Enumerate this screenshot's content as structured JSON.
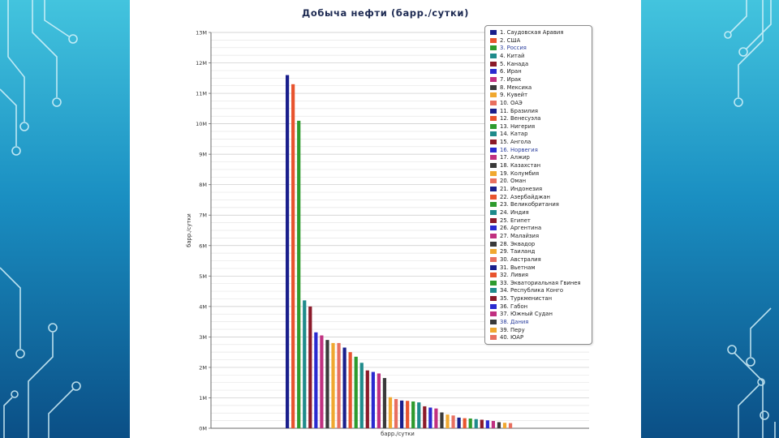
{
  "colors": [
    "#1a1f8c",
    "#e8542e",
    "#2e9b2e",
    "#1f8b8b",
    "#8b1a2a",
    "#2a2ad0",
    "#c03080",
    "#3a3a3a",
    "#f0a830",
    "#e87060"
  ],
  "highlight_color": "#2b3f9e",
  "chart_data": {
    "type": "bar",
    "title": "Добыча нефти (барр./сутки)",
    "xlabel": "барр./сутки",
    "ylabel": "барр./сутки",
    "ylim": [
      0,
      13000000
    ],
    "y_ticks": [
      {
        "value": 0,
        "label": "0M"
      },
      {
        "value": 1000000,
        "label": "1M"
      },
      {
        "value": 2000000,
        "label": "2M"
      },
      {
        "value": 3000000,
        "label": "3M"
      },
      {
        "value": 4000000,
        "label": "4M"
      },
      {
        "value": 5000000,
        "label": "5M"
      },
      {
        "value": 6000000,
        "label": "6M"
      },
      {
        "value": 7000000,
        "label": "7M"
      },
      {
        "value": 8000000,
        "label": "8M"
      },
      {
        "value": 9000000,
        "label": "9M"
      },
      {
        "value": 10000000,
        "label": "10M"
      },
      {
        "value": 11000000,
        "label": "11M"
      },
      {
        "value": 12000000,
        "label": "12M"
      },
      {
        "value": 13000000,
        "label": "13M"
      }
    ],
    "grid": true,
    "legend_position": "top-right",
    "categories": [
      "1. Саудовская Аравия",
      "2. США",
      "3. Россия",
      "4. Китай",
      "5. Канада",
      "6. Иран",
      "7. Ирак",
      "8. Мексика",
      "9. Кувейт",
      "10. ОАЭ",
      "11. Бразилия",
      "12. Венесуэла",
      "13. Нигерия",
      "14. Катар",
      "15. Ангола",
      "16. Норвегия",
      "17. Алжир",
      "18. Казахстан",
      "19. Колумбия",
      "20. Оман",
      "21. Индонезия",
      "22. Азербайджан",
      "23. Великобритания",
      "24. Индия",
      "25. Египет",
      "26. Аргентина",
      "27. Малайзия",
      "28. Эквадор",
      "29. Таиланд",
      "30. Австралия",
      "31. Вьетнам",
      "32. Ливия",
      "33. Экваториальная Гвинея",
      "34. Республика Конго",
      "35. Туркменистан",
      "36. Габон",
      "37. Южный Судан",
      "38. Дания",
      "39. Перу",
      "40. ЮАР"
    ],
    "values": [
      11600000,
      11300000,
      10100000,
      4200000,
      4000000,
      3150000,
      3050000,
      2900000,
      2800000,
      2800000,
      2650000,
      2500000,
      2350000,
      2150000,
      1900000,
      1850000,
      1800000,
      1650000,
      1020000,
      960000,
      910000,
      900000,
      880000,
      850000,
      720000,
      680000,
      650000,
      520000,
      450000,
      420000,
      350000,
      330000,
      320000,
      300000,
      280000,
      260000,
      240000,
      200000,
      180000,
      170000
    ],
    "highlighted": [
      "3. Россия",
      "16. Норвегия",
      "38. Дания"
    ]
  }
}
